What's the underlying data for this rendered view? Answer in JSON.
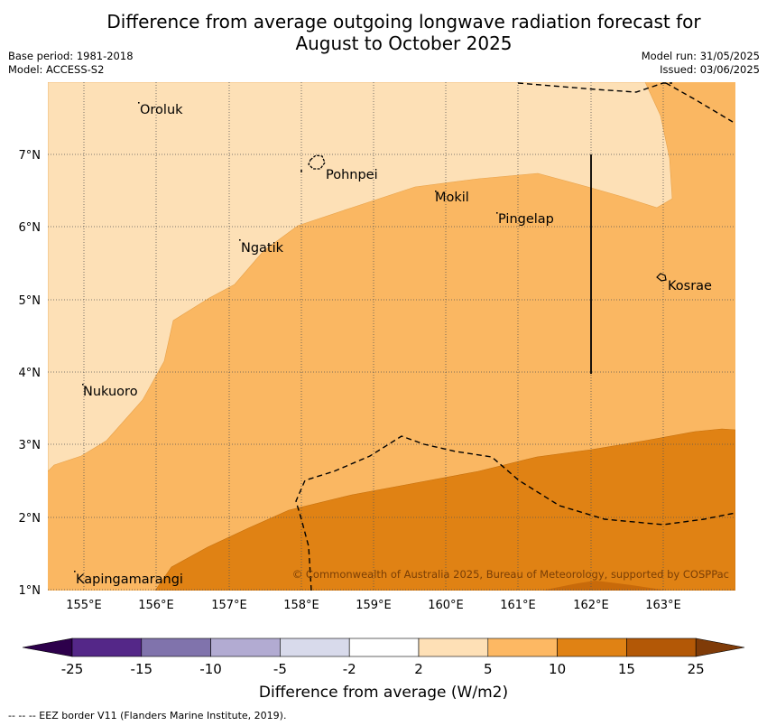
{
  "title": {
    "line1": "Difference from average outgoing longwave radiation forecast for",
    "line2": "August to October 2025"
  },
  "meta": {
    "base_period": "Base period: 1981-2018",
    "model": "Model: ACCESS-S2",
    "model_run": "Model run: 31/05/2025",
    "issued": "Issued: 03/06/2025"
  },
  "map": {
    "lon_ticks": [
      "155°E",
      "156°E",
      "157°E",
      "158°E",
      "159°E",
      "160°E",
      "161°E",
      "162°E",
      "163°E"
    ],
    "lat_ticks": [
      "7°N",
      "6°N",
      "5°N",
      "4°N",
      "3°N",
      "2°N",
      "1°N"
    ],
    "places": [
      "Oroluk",
      "Pohnpei",
      "Mokil",
      "Pingelap",
      "Ngatik",
      "Kosrae",
      "Nukuoro",
      "Kapingamarangi"
    ],
    "copyright": "© Commonwealth of Australia 2025, Bureau of Meteorology, supported by COSPPac",
    "fill_colors": {
      "2_to_5": "#fde0b6",
      "5_to_10": "#fab762",
      "10_to_15": "#e08214",
      "15_to_25": "#b35806"
    }
  },
  "colorbar": {
    "ticks": [
      "-25",
      "-15",
      "-10",
      "-5",
      "-2",
      "2",
      "5",
      "10",
      "15",
      "25"
    ],
    "colors": [
      "#542788",
      "#8073ac",
      "#b2abd2",
      "#d8daeb",
      "#ffffff",
      "#fee0b6",
      "#fdb863",
      "#e08214",
      "#b35806"
    ],
    "under_color": "#2d004b",
    "over_color": "#7f3b08",
    "label": "Difference from average (W/m2)"
  },
  "footer": "--  --  -- EEZ border V11 (Flanders Marine Institute, 2019)."
}
